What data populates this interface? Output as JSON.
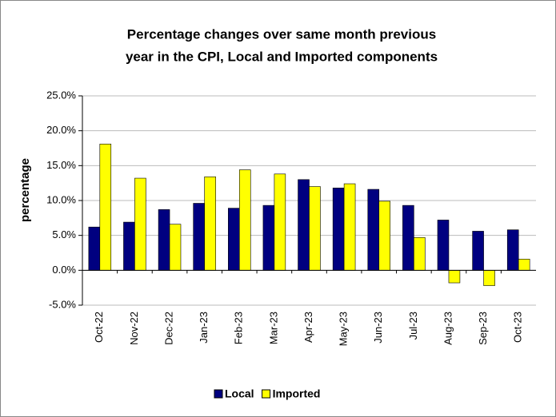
{
  "chart_data": {
    "type": "bar",
    "title_lines": [
      "Percentage changes over same month previous",
      "year in the CPI, Local and Imported components"
    ],
    "y_label": "percentage",
    "categories": [
      "Oct-22",
      "Nov-22",
      "Dec-22",
      "Jan-23",
      "Feb-23",
      "Mar-23",
      "Apr-23",
      "May-23",
      "Jun-23",
      "Jul-23",
      "Aug-23",
      "Sep-23",
      "Oct-23"
    ],
    "series": [
      {
        "name": "Local",
        "color": "#000080",
        "values": [
          6.2,
          6.9,
          8.7,
          9.6,
          8.9,
          9.3,
          13.0,
          11.8,
          11.6,
          9.3,
          7.2,
          5.6,
          5.8
        ]
      },
      {
        "name": "Imported",
        "color": "#ffff00",
        "values": [
          18.1,
          13.2,
          6.6,
          13.4,
          14.4,
          13.8,
          12.0,
          12.4,
          9.9,
          4.7,
          -1.8,
          -2.2,
          1.6
        ]
      }
    ],
    "ylim": [
      -5,
      25
    ],
    "yticks": [
      {
        "value": -5,
        "label": "-5.0%"
      },
      {
        "value": 0,
        "label": "0.0%"
      },
      {
        "value": 5,
        "label": "5.0%"
      },
      {
        "value": 10,
        "label": "10.0%"
      },
      {
        "value": 15,
        "label": "15.0%"
      },
      {
        "value": 20,
        "label": "20.0%"
      },
      {
        "value": 25,
        "label": "25.0%"
      }
    ],
    "grid": true,
    "legend": "bottom"
  }
}
